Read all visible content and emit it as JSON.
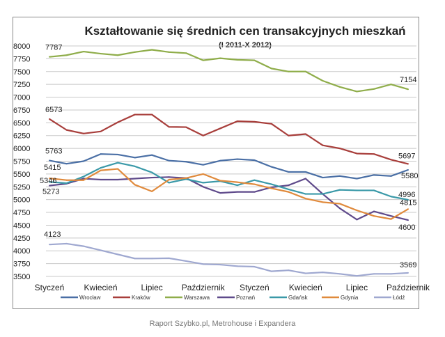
{
  "chart_data": {
    "type": "line",
    "title": "Kształtowanie się średnich cen transakcyjnych mieszkań",
    "subtitle": "(I 2011-X 2012)",
    "xlabel": "",
    "ylabel": "",
    "ylim": [
      3500,
      8000
    ],
    "yticks": [
      3500,
      3750,
      4000,
      4250,
      4500,
      4750,
      5000,
      5250,
      5500,
      5750,
      6000,
      6250,
      6500,
      6750,
      7000,
      7250,
      7500,
      7750,
      8000
    ],
    "x_tick_labels": [
      {
        "index": 0,
        "label": "Styczeń"
      },
      {
        "index": 3,
        "label": "Kwiecień"
      },
      {
        "index": 6,
        "label": "Lipiec"
      },
      {
        "index": 9,
        "label": "Październik"
      },
      {
        "index": 12,
        "label": "Styczeń"
      },
      {
        "index": 15,
        "label": "Kwiecień"
      },
      {
        "index": 18,
        "label": "Lipiec"
      },
      {
        "index": 21,
        "label": "Październik"
      }
    ],
    "grid": true,
    "legend": "bottom",
    "series": [
      {
        "name": "Wrocław",
        "color": "#4a6fa5",
        "values": [
          5763,
          5700,
          5750,
          5890,
          5880,
          5820,
          5870,
          5760,
          5740,
          5680,
          5760,
          5790,
          5770,
          5640,
          5540,
          5540,
          5430,
          5460,
          5410,
          5480,
          5460,
          5580
        ],
        "labels": {
          "first": "5763",
          "last": "5580"
        }
      },
      {
        "name": "Kraków",
        "color": "#a83e3b",
        "values": [
          6573,
          6360,
          6290,
          6330,
          6510,
          6660,
          6660,
          6420,
          6415,
          6250,
          6390,
          6530,
          6520,
          6480,
          6250,
          6280,
          6060,
          6000,
          5900,
          5890,
          5780,
          5697
        ],
        "labels": {
          "first": "6573",
          "last": "5697"
        }
      },
      {
        "name": "Warszawa",
        "color": "#8fad4a",
        "values": [
          7787,
          7820,
          7890,
          7850,
          7820,
          7880,
          7925,
          7880,
          7860,
          7720,
          7760,
          7730,
          7720,
          7560,
          7500,
          7500,
          7320,
          7200,
          7110,
          7160,
          7250,
          7154
        ],
        "labels": {
          "first": "7787",
          "last": "7154"
        }
      },
      {
        "name": "Poznań",
        "color": "#5f4a8b",
        "values": [
          5273,
          5310,
          5410,
          5390,
          5390,
          5410,
          5430,
          5440,
          5420,
          5250,
          5130,
          5150,
          5150,
          5240,
          5280,
          5410,
          5110,
          4830,
          4610,
          4770,
          4680,
          4600
        ],
        "labels": {
          "first": "5273",
          "last": "4600"
        }
      },
      {
        "name": "Gdańsk",
        "color": "#3a99a8",
        "values": [
          5346,
          5320,
          5450,
          5620,
          5720,
          5650,
          5530,
          5330,
          5400,
          5330,
          5360,
          5280,
          5380,
          5300,
          5200,
          5110,
          5110,
          5190,
          5180,
          5180,
          5060,
          4996
        ],
        "labels": {
          "first": "5346",
          "last": "4996"
        }
      },
      {
        "name": "Gdynia",
        "color": "#e08a3c",
        "values": [
          5415,
          5380,
          5380,
          5570,
          5600,
          5290,
          5160,
          5390,
          5420,
          5500,
          5370,
          5340,
          5300,
          5220,
          5150,
          5020,
          4950,
          4920,
          4790,
          4680,
          4620,
          4815
        ],
        "labels": {
          "first": "5415",
          "last": "4815"
        }
      },
      {
        "name": "Łódź",
        "color": "#9fa8d0",
        "values": [
          4123,
          4140,
          4090,
          4010,
          3930,
          3850,
          3850,
          3855,
          3800,
          3740,
          3730,
          3700,
          3690,
          3600,
          3620,
          3560,
          3580,
          3550,
          3510,
          3550,
          3550,
          3569
        ],
        "labels": {
          "first": "4123",
          "last": "3569"
        }
      }
    ]
  },
  "footer": "Raport Szybko.pl, Metrohouse i Expandera"
}
